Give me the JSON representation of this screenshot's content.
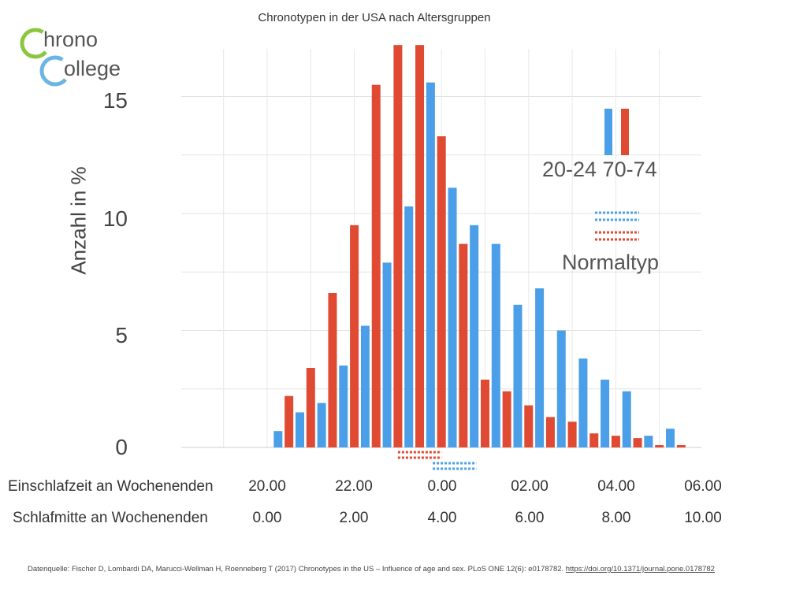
{
  "logo": {
    "word1_rest": "hrono",
    "word2_rest": "ollege",
    "brand_colors": [
      "#8cc63e",
      "#6ab6e3"
    ]
  },
  "y_ticks": [
    "15",
    "10",
    "5",
    "0"
  ],
  "legend": {
    "age_groups_label": "20-24 70-74",
    "normal_label": "Normaltyp"
  },
  "rows": {
    "row1_label": "Einschlafzeit an Wochenenden",
    "row1_ticks": [
      "20.00",
      "22.00",
      "0.00",
      "02.00",
      "04.00",
      "06.00"
    ],
    "row2_label": "Schlafmitte an Wochenenden",
    "row2_ticks": [
      "0.00",
      "2.00",
      "4.00",
      "6.00",
      "8.00",
      "10.00"
    ]
  },
  "source": {
    "text": "Datenquelle: Fischer D, Lombardi DA, Marucci-Wellman H, Roenneberg T (2017) Chronotypes in the US – Influence of age and sex. PLoS ONE 12(6): e0178782. ",
    "link": "https://doi.org/10.1371/journal.pone.0178782"
  },
  "chart_data": {
    "type": "bar",
    "title": "Chronotypen in der USA nach Altersgruppen",
    "ylabel": "Anzahl in %",
    "ylim": [
      0,
      17
    ],
    "grid": true,
    "x_axis_ticks": [
      "0.00",
      "2.00",
      "4.00",
      "6.00",
      "8.00",
      "10.00"
    ],
    "series": [
      {
        "name": "20-24",
        "color": "#4a9fe8",
        "x": [
          0.25,
          0.75,
          1.25,
          1.75,
          2.25,
          2.75,
          3.25,
          3.75,
          4.25,
          4.75,
          5.25,
          5.75,
          6.25,
          6.75,
          7.25,
          7.75,
          8.25,
          8.75,
          9.25
        ],
        "values": [
          0.7,
          1.5,
          1.9,
          3.5,
          5.2,
          7.9,
          10.3,
          15.6,
          11.1,
          9.5,
          8.7,
          6.1,
          6.8,
          5.0,
          3.8,
          2.9,
          2.4,
          0.5,
          0.8
        ]
      },
      {
        "name": "70-74",
        "color": "#e04a32",
        "x": [
          0.5,
          1.0,
          1.5,
          2.0,
          2.5,
          3.0,
          3.5,
          4.0,
          4.5,
          5.0,
          5.5,
          6.0,
          6.5,
          7.0,
          7.5,
          8.0,
          8.5,
          9.0,
          9.5
        ],
        "values": [
          2.2,
          3.4,
          6.6,
          9.5,
          15.5,
          17.2,
          17.2,
          13.3,
          8.7,
          2.9,
          2.4,
          1.8,
          1.3,
          1.1,
          0.6,
          0.5,
          0.4,
          0.1,
          0.1
        ]
      }
    ],
    "normal_type_markers": [
      {
        "series": "70-74",
        "color": "#e04a32",
        "x_start": 3.0,
        "x_end": 4.0
      },
      {
        "series": "20-24",
        "color": "#4a9fe8",
        "x_start": 3.8,
        "x_end": 4.8
      }
    ]
  }
}
